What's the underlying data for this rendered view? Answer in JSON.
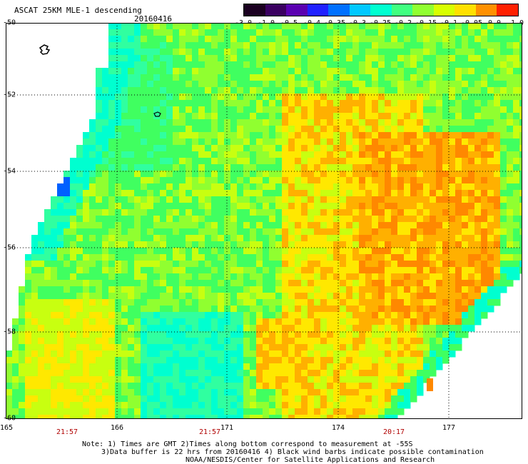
{
  "header": {
    "title": "ASCAT 25KM MLE-1 descending",
    "date": "20160416"
  },
  "colorbar": {
    "labels": [
      "-3.0",
      "-1.0",
      "-0.5",
      "-0.4",
      "-0.35",
      "-0.3",
      "-0.25",
      "-0.2",
      "-0.15",
      "-0.1",
      "-0.05",
      "0.0",
      "1.0"
    ],
    "colors": [
      "#1a0020",
      "#3a0060",
      "#5a00b0",
      "#2020ff",
      "#0070ff",
      "#00c8ff",
      "#00ffd0",
      "#40ff80",
      "#90ff30",
      "#d8ff00",
      "#ffe000",
      "#ff9000",
      "#ff2000"
    ]
  },
  "axes": {
    "lat_labels": [
      "-50",
      "-52",
      "-54",
      "-56",
      "-58",
      "-60"
    ],
    "lon_labels": [
      "165",
      "166",
      "171",
      "174",
      "177"
    ],
    "time_labels": [
      "21:57",
      "21:57",
      "20:17"
    ]
  },
  "notes": {
    "line1": "Note: 1) Times are GMT 2)Times along bottom correspond to measurement at -55S",
    "line2": "3)Data buffer is 22 hrs from 20160416 4) Black wind barbs indicate possible contamination",
    "line3": "NOAA/NESDIS/Center for Satellite Applications and Research"
  },
  "map_colors": {
    "cyan": "#00ffd0",
    "aqua": "#30ffa0",
    "green": "#40ff60",
    "lime": "#90ff30",
    "yellowgreen": "#c8ff10",
    "yellow": "#ffe800",
    "orange": "#ffb000",
    "deeporange": "#ff8800",
    "blue": "#0060ff"
  }
}
